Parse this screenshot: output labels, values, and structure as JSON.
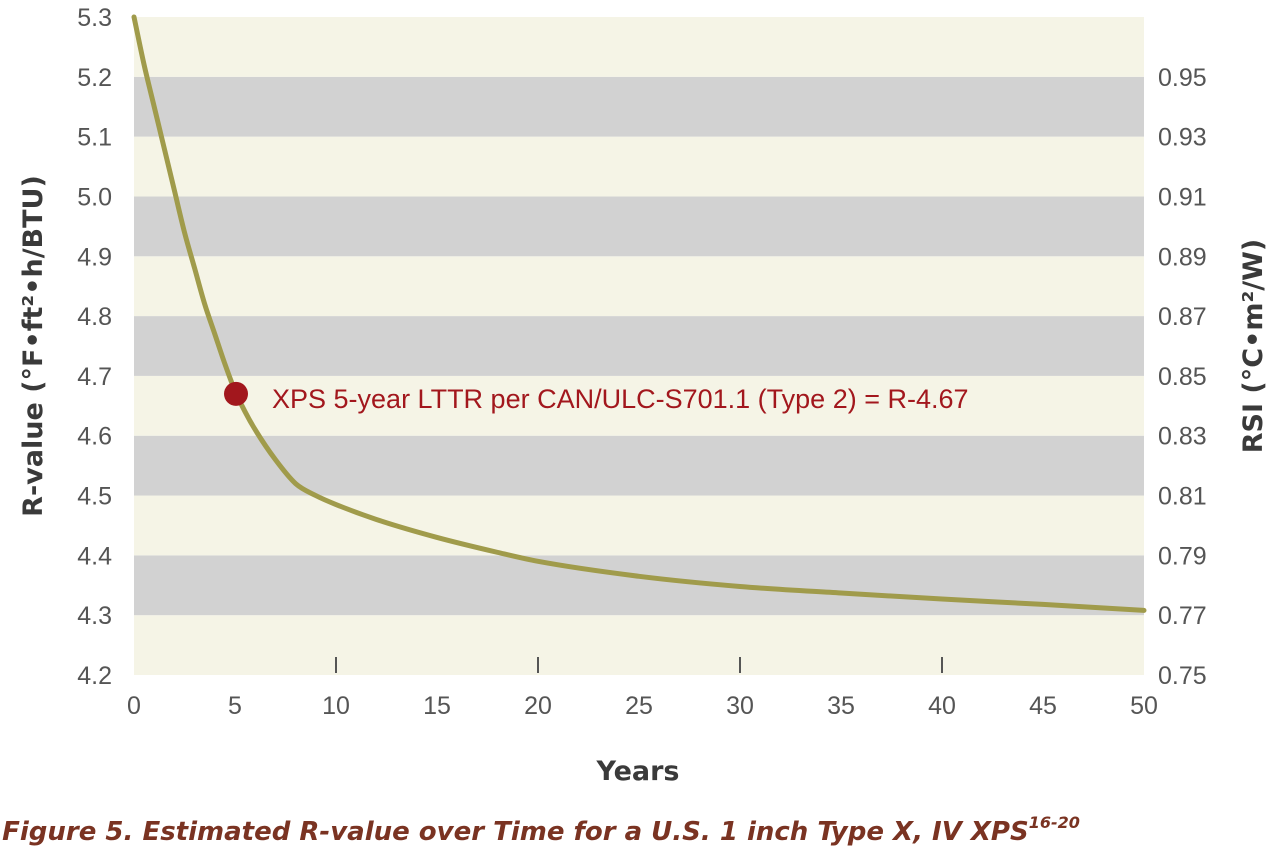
{
  "chart_data": {
    "type": "line",
    "caption": "Figure 5. Estimated R-value over Time for a U.S. 1 inch Type X, IV XPS",
    "caption_superscript": "16-20",
    "xlabel": "Years",
    "ylabel_left": "R-value (°F•ft²•h/BTU)",
    "ylabel_right": "RSI (°C•m²/W)",
    "xlim": [
      0,
      50
    ],
    "ylim_left": [
      4.2,
      5.3
    ],
    "x_ticks": [
      "0",
      "5",
      "10",
      "15",
      "20",
      "25",
      "30",
      "35",
      "40",
      "45",
      "50"
    ],
    "y_ticks_left": [
      "4.2",
      "4.3",
      "4.4",
      "4.5",
      "4.6",
      "4.7",
      "4.8",
      "4.9",
      "5.0",
      "5.1",
      "5.2",
      "5.3"
    ],
    "y_ticks_right": [
      {
        "label": "0.75",
        "r_value": 4.2
      },
      {
        "label": "0.77",
        "r_value": 4.3
      },
      {
        "label": "0.79",
        "r_value": 4.4
      },
      {
        "label": "0.81",
        "r_value": 4.5
      },
      {
        "label": "0.83",
        "r_value": 4.6
      },
      {
        "label": "0.85",
        "r_value": 4.7
      },
      {
        "label": "0.87",
        "r_value": 4.8
      },
      {
        "label": "0.89",
        "r_value": 4.9
      },
      {
        "label": "0.91",
        "r_value": 5.0
      },
      {
        "label": "0.93",
        "r_value": 5.1
      },
      {
        "label": "0.95",
        "r_value": 5.2
      }
    ],
    "grid": "alternating horizontal bands",
    "series": [
      {
        "x": [
          0,
          0.5,
          1,
          1.5,
          2,
          2.5,
          3,
          3.5,
          4,
          4.5,
          5,
          5.5,
          6,
          7,
          8,
          9,
          10,
          12,
          15,
          18,
          20,
          25,
          30,
          35,
          40,
          45,
          50
        ],
        "y": [
          5.3,
          5.22,
          5.15,
          5.08,
          5.01,
          4.94,
          4.88,
          4.82,
          4.77,
          4.72,
          4.675,
          4.64,
          4.61,
          4.56,
          4.52,
          4.5,
          4.485,
          4.46,
          4.43,
          4.405,
          4.39,
          4.365,
          4.348,
          4.337,
          4.327,
          4.318,
          4.308
        ]
      }
    ],
    "highlight_point": {
      "x": 5,
      "y": 4.67
    },
    "annotation": "XPS 5-year LTTR per CAN/ULC-S701.1 (Type 2) = R-4.67",
    "colors": {
      "band_light": "#f5f4e6",
      "band_dark": "#d2d2d2",
      "line": "#a09b4b",
      "point": "#a2171d",
      "annotation": "#a2171d",
      "caption": "#7a3322",
      "ticks": "#555555",
      "axis_titles": "#3a3a3a"
    }
  }
}
